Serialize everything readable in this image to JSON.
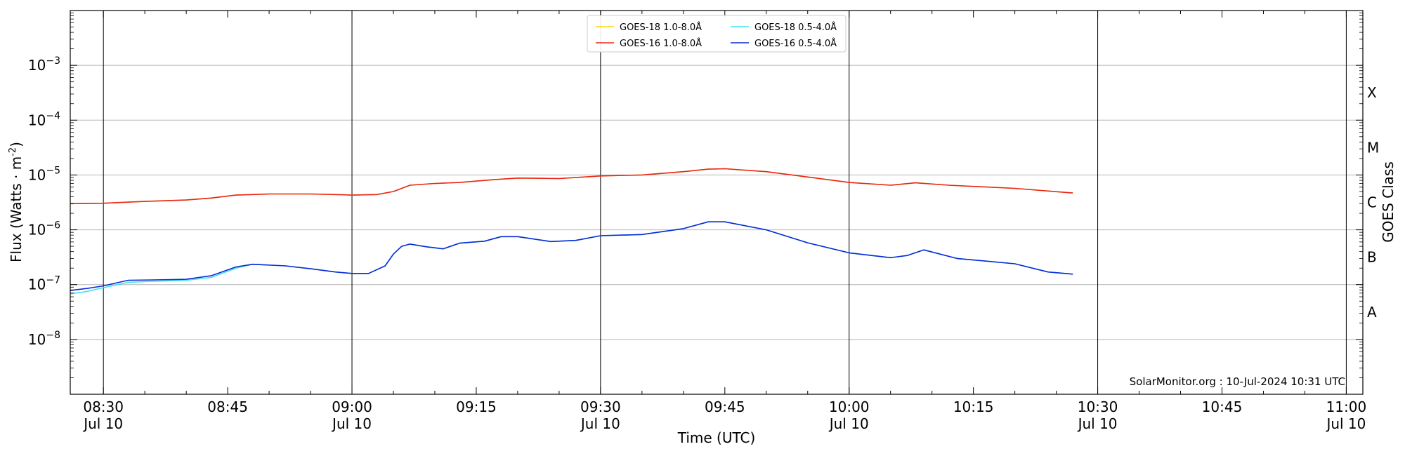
{
  "chart_data": {
    "type": "line",
    "xlabel": "Time (UTC)",
    "ylabel": "Flux (Watts · m",
    "ylabel_sup": "-2",
    "ylabel_tail": ")",
    "y2label": "GOES Class",
    "yscale": "log",
    "xlim": [
      "08:26",
      "11:02"
    ],
    "ylim": [
      1e-09,
      0.01
    ],
    "grid": "horizontal",
    "legend_position": "top-center",
    "x_ticks": [
      {
        "t": "08:30",
        "line1": "08:30",
        "line2": "Jul 10"
      },
      {
        "t": "08:45",
        "line1": "08:45",
        "line2": ""
      },
      {
        "t": "09:00",
        "line1": "09:00",
        "line2": "Jul 10"
      },
      {
        "t": "09:15",
        "line1": "09:15",
        "line2": ""
      },
      {
        "t": "09:30",
        "line1": "09:30",
        "line2": "Jul 10"
      },
      {
        "t": "09:45",
        "line1": "09:45",
        "line2": ""
      },
      {
        "t": "10:00",
        "line1": "10:00",
        "line2": "Jul 10"
      },
      {
        "t": "10:15",
        "line1": "10:15",
        "line2": ""
      },
      {
        "t": "10:30",
        "line1": "10:30",
        "line2": "Jul 10"
      },
      {
        "t": "10:45",
        "line1": "10:45",
        "line2": ""
      },
      {
        "t": "11:00",
        "line1": "11:00",
        "line2": "Jul 10"
      }
    ],
    "vlines": [
      "08:30",
      "09:00",
      "09:30",
      "10:00",
      "10:30",
      "11:00"
    ],
    "y_ticks": [
      {
        "value": 0.001,
        "base": "10",
        "exp": "−3"
      },
      {
        "value": 0.0001,
        "base": "10",
        "exp": "−4"
      },
      {
        "value": 1e-05,
        "base": "10",
        "exp": "−5"
      },
      {
        "value": 1e-06,
        "base": "10",
        "exp": "−6"
      },
      {
        "value": 1e-07,
        "base": "10",
        "exp": "−7"
      },
      {
        "value": 1e-08,
        "base": "10",
        "exp": "−8"
      }
    ],
    "goes_classes": [
      {
        "label": "X",
        "value": 0.000316
      },
      {
        "label": "M",
        "value": 3.16e-05
      },
      {
        "label": "C",
        "value": 3.16e-06
      },
      {
        "label": "B",
        "value": 3.16e-07
      },
      {
        "label": "A",
        "value": 3.16e-08
      }
    ],
    "annotation": "SolarMonitor.org : 10-Jul-2024 10:31 UTC",
    "series": [
      {
        "name": "GOES-18 1.0-8.0Å",
        "color": "#ffd700",
        "points": [
          [
            "08:26",
            3e-06
          ],
          [
            "08:30",
            3.05e-06
          ],
          [
            "08:35",
            3.3e-06
          ],
          [
            "08:40",
            3.5e-06
          ],
          [
            "08:43",
            3.8e-06
          ],
          [
            "08:46",
            4.3e-06
          ],
          [
            "08:50",
            4.5e-06
          ],
          [
            "08:55",
            4.5e-06
          ],
          [
            "08:58",
            4.4e-06
          ],
          [
            "09:00",
            4.3e-06
          ],
          [
            "09:03",
            4.4e-06
          ],
          [
            "09:05",
            5e-06
          ],
          [
            "09:07",
            6.5e-06
          ],
          [
            "09:10",
            7e-06
          ],
          [
            "09:13",
            7.3e-06
          ],
          [
            "09:17",
            8.2e-06
          ],
          [
            "09:20",
            8.8e-06
          ],
          [
            "09:25",
            8.6e-06
          ],
          [
            "09:30",
            9.6e-06
          ],
          [
            "09:35",
            1e-05
          ],
          [
            "09:40",
            1.15e-05
          ],
          [
            "09:43",
            1.28e-05
          ],
          [
            "09:45",
            1.3e-05
          ],
          [
            "09:50",
            1.15e-05
          ],
          [
            "09:55",
            9.2e-06
          ],
          [
            "10:00",
            7.3e-06
          ],
          [
            "10:05",
            6.5e-06
          ],
          [
            "10:08",
            7.2e-06
          ],
          [
            "10:12",
            6.5e-06
          ],
          [
            "10:20",
            5.7e-06
          ],
          [
            "10:27",
            4.7e-06
          ]
        ]
      },
      {
        "name": "GOES-16 1.0-8.0Å",
        "color": "#e8261c",
        "points": [
          [
            "08:26",
            3e-06
          ],
          [
            "08:30",
            3.05e-06
          ],
          [
            "08:35",
            3.3e-06
          ],
          [
            "08:40",
            3.5e-06
          ],
          [
            "08:43",
            3.8e-06
          ],
          [
            "08:46",
            4.3e-06
          ],
          [
            "08:50",
            4.5e-06
          ],
          [
            "08:55",
            4.5e-06
          ],
          [
            "08:58",
            4.4e-06
          ],
          [
            "09:00",
            4.3e-06
          ],
          [
            "09:03",
            4.4e-06
          ],
          [
            "09:05",
            5e-06
          ],
          [
            "09:07",
            6.5e-06
          ],
          [
            "09:10",
            7e-06
          ],
          [
            "09:13",
            7.3e-06
          ],
          [
            "09:17",
            8.2e-06
          ],
          [
            "09:20",
            8.8e-06
          ],
          [
            "09:25",
            8.6e-06
          ],
          [
            "09:30",
            9.6e-06
          ],
          [
            "09:35",
            1e-05
          ],
          [
            "09:40",
            1.15e-05
          ],
          [
            "09:43",
            1.28e-05
          ],
          [
            "09:45",
            1.3e-05
          ],
          [
            "09:50",
            1.15e-05
          ],
          [
            "09:55",
            9.2e-06
          ],
          [
            "10:00",
            7.3e-06
          ],
          [
            "10:05",
            6.5e-06
          ],
          [
            "10:08",
            7.2e-06
          ],
          [
            "10:12",
            6.5e-06
          ],
          [
            "10:20",
            5.7e-06
          ],
          [
            "10:27",
            4.7e-06
          ]
        ]
      },
      {
        "name": "GOES-18 0.5-4.0Å",
        "color": "#3fe0f0",
        "points": [
          [
            "08:26",
            6.8e-08
          ],
          [
            "08:28",
            7.5e-08
          ],
          [
            "08:30",
            8.8e-08
          ],
          [
            "08:33",
            1.1e-07
          ],
          [
            "08:36",
            1.15e-07
          ],
          [
            "08:40",
            1.2e-07
          ],
          [
            "08:43",
            1.35e-07
          ],
          [
            "08:46",
            2e-07
          ],
          [
            "08:48",
            2.35e-07
          ],
          [
            "08:52",
            2.2e-07
          ],
          [
            "08:55",
            1.95e-07
          ],
          [
            "08:58",
            1.7e-07
          ],
          [
            "09:00",
            1.6e-07
          ],
          [
            "09:02",
            1.6e-07
          ],
          [
            "09:04",
            2.2e-07
          ],
          [
            "09:05",
            3.6e-07
          ],
          [
            "09:06",
            5e-07
          ],
          [
            "09:07",
            5.5e-07
          ],
          [
            "09:09",
            4.9e-07
          ],
          [
            "09:11",
            4.5e-07
          ],
          [
            "09:13",
            5.7e-07
          ],
          [
            "09:16",
            6.2e-07
          ],
          [
            "09:18",
            7.5e-07
          ],
          [
            "09:20",
            7.5e-07
          ],
          [
            "09:24",
            6.1e-07
          ],
          [
            "09:27",
            6.4e-07
          ],
          [
            "09:30",
            7.8e-07
          ],
          [
            "09:35",
            8.2e-07
          ],
          [
            "09:40",
            1.05e-06
          ],
          [
            "09:43",
            1.4e-06
          ],
          [
            "09:45",
            1.4e-06
          ],
          [
            "09:50",
            1e-06
          ],
          [
            "09:55",
            5.8e-07
          ],
          [
            "10:00",
            3.8e-07
          ],
          [
            "10:05",
            3.1e-07
          ],
          [
            "10:07",
            3.4e-07
          ],
          [
            "10:09",
            4.3e-07
          ],
          [
            "10:13",
            3e-07
          ],
          [
            "10:20",
            2.4e-07
          ],
          [
            "10:24",
            1.7e-07
          ],
          [
            "10:27",
            1.55e-07
          ]
        ]
      },
      {
        "name": "GOES-16 0.5-4.0Å",
        "color": "#0a2bd6",
        "points": [
          [
            "08:26",
            7.8e-08
          ],
          [
            "08:28",
            8.5e-08
          ],
          [
            "08:30",
            9.5e-08
          ],
          [
            "08:33",
            1.2e-07
          ],
          [
            "08:36",
            1.22e-07
          ],
          [
            "08:40",
            1.25e-07
          ],
          [
            "08:43",
            1.45e-07
          ],
          [
            "08:46",
            2.1e-07
          ],
          [
            "08:48",
            2.35e-07
          ],
          [
            "08:52",
            2.2e-07
          ],
          [
            "08:55",
            1.95e-07
          ],
          [
            "08:58",
            1.7e-07
          ],
          [
            "09:00",
            1.6e-07
          ],
          [
            "09:02",
            1.6e-07
          ],
          [
            "09:04",
            2.2e-07
          ],
          [
            "09:05",
            3.6e-07
          ],
          [
            "09:06",
            5e-07
          ],
          [
            "09:07",
            5.5e-07
          ],
          [
            "09:09",
            4.9e-07
          ],
          [
            "09:11",
            4.5e-07
          ],
          [
            "09:13",
            5.7e-07
          ],
          [
            "09:16",
            6.2e-07
          ],
          [
            "09:18",
            7.5e-07
          ],
          [
            "09:20",
            7.5e-07
          ],
          [
            "09:24",
            6.1e-07
          ],
          [
            "09:27",
            6.4e-07
          ],
          [
            "09:30",
            7.8e-07
          ],
          [
            "09:35",
            8.2e-07
          ],
          [
            "09:40",
            1.05e-06
          ],
          [
            "09:43",
            1.4e-06
          ],
          [
            "09:45",
            1.4e-06
          ],
          [
            "09:50",
            1e-06
          ],
          [
            "09:55",
            5.8e-07
          ],
          [
            "10:00",
            3.8e-07
          ],
          [
            "10:05",
            3.1e-07
          ],
          [
            "10:07",
            3.4e-07
          ],
          [
            "10:09",
            4.3e-07
          ],
          [
            "10:13",
            3e-07
          ],
          [
            "10:20",
            2.4e-07
          ],
          [
            "10:24",
            1.7e-07
          ],
          [
            "10:27",
            1.55e-07
          ]
        ]
      }
    ]
  }
}
